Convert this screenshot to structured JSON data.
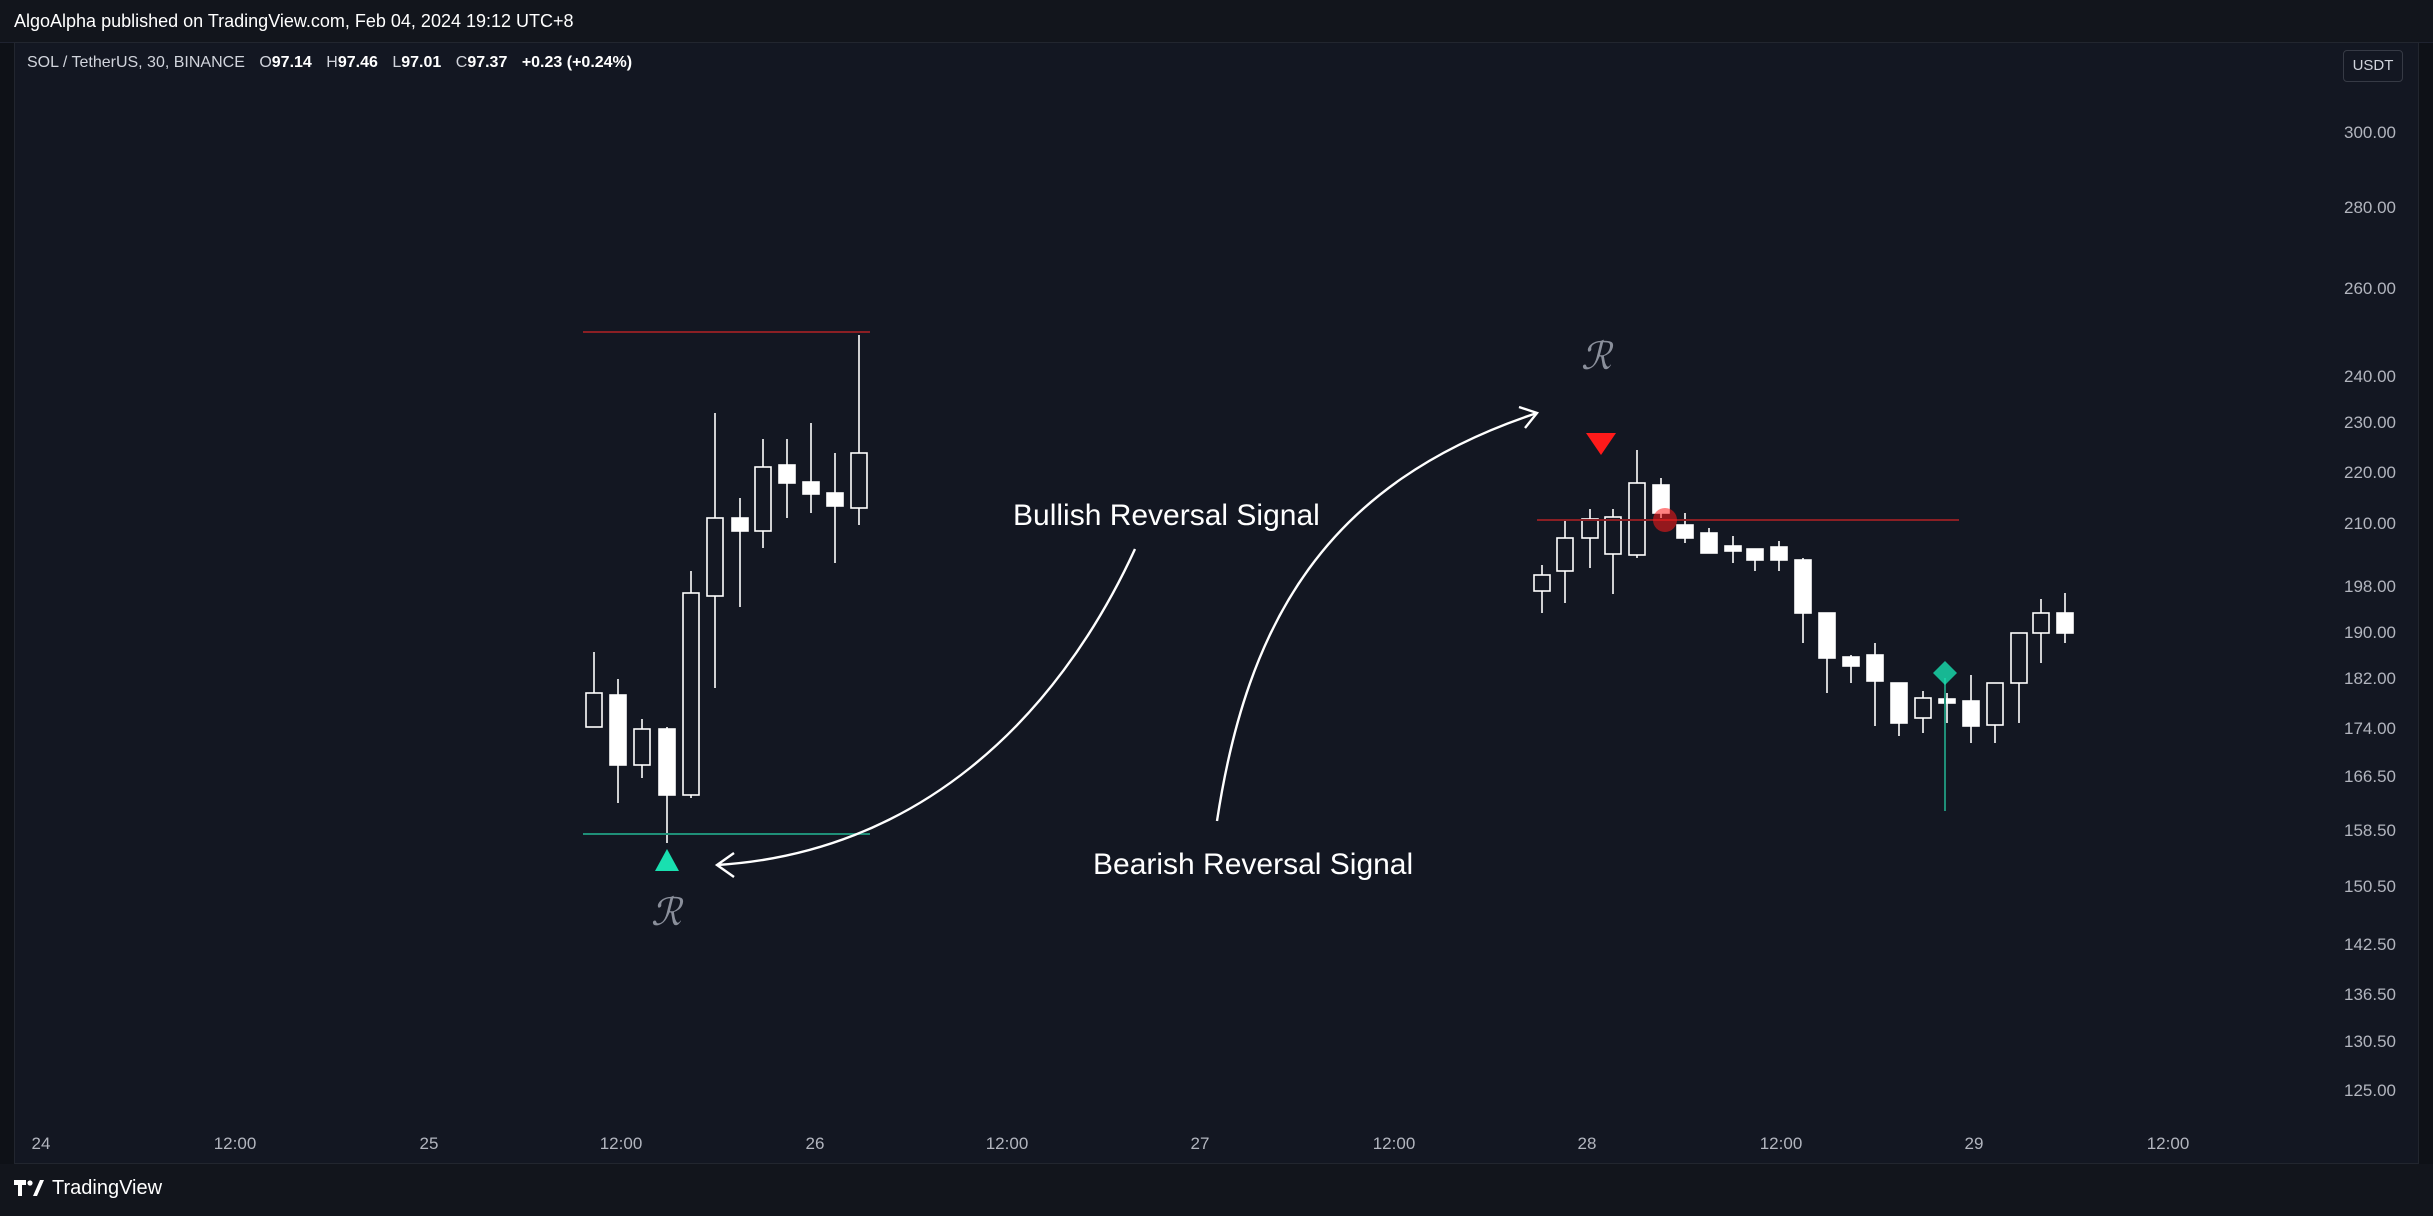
{
  "header": {
    "published": "AlgoAlpha published on TradingView.com, Feb 04, 2024 19:12 UTC+8"
  },
  "legend": {
    "symbol": "SOL / TetherUS, 30, BINANCE",
    "open_label": "O",
    "open_value": "97.14",
    "high_label": "H",
    "high_value": "97.46",
    "low_label": "L",
    "low_value": "97.01",
    "close_label": "C",
    "close_value": "97.37",
    "change": "+0.23 (+0.24%)"
  },
  "currency_button": "USDT",
  "price_axis": [
    "300.00",
    "280.00",
    "260.00",
    "240.00",
    "230.00",
    "220.00",
    "210.00",
    "198.00",
    "190.00",
    "182.00",
    "174.00",
    "166.50",
    "158.50",
    "150.50",
    "142.50",
    "136.50",
    "130.50",
    "125.00"
  ],
  "time_axis": [
    "24",
    "12:00",
    "25",
    "12:00",
    "26",
    "12:00",
    "27",
    "12:00",
    "28",
    "12:00",
    "29",
    "12:00"
  ],
  "annotations": {
    "bullish": "Bullish Reversal Signal",
    "bearish": "Bearish Reversal Signal",
    "reversal_mark": "ℛ"
  },
  "footer": {
    "brand": "TradingView"
  },
  "colors": {
    "background": "#131722",
    "candle": "#ffffff",
    "bull_signal": "#19e0b0",
    "bear_signal": "#ff1a1a",
    "resistance_line": "#8b1f24",
    "support_line": "#1f8f78"
  },
  "icons": {
    "bull_signal": "triangle-up-icon",
    "bear_signal": "triangle-down-icon",
    "brand_logo": "tradingview-logo-icon"
  }
}
